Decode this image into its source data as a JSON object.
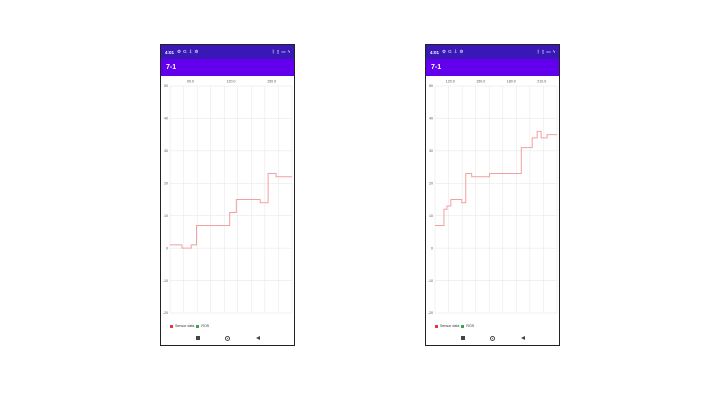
{
  "phones": [
    {
      "status": {
        "time": "4:01",
        "left_icons": [
          "settings-icon",
          "google-icon",
          "download-icon",
          "settings-icon"
        ],
        "right_icons": [
          "bluetooth-icon",
          "vibrate-icon",
          "battery-icon",
          "charging-icon"
        ]
      },
      "app_title": "7-1",
      "legend": [
        {
          "label": "Sensor data",
          "color": "#e53935"
        },
        {
          "label": "ROS",
          "color": "#43a047"
        }
      ],
      "chart_data": {
        "type": "line",
        "x_tick_labels": [
          "90.0",
          "120.0",
          "150.0"
        ],
        "y_ticks": [
          -20,
          -10,
          0,
          10,
          20,
          30,
          40,
          50
        ],
        "ylim": [
          -20,
          50
        ],
        "xlim": [
          80,
          172
        ],
        "grid": true,
        "line_color": "#f2a0a0",
        "series": [
          {
            "x": [
              80,
              89,
              89,
              96,
              96,
              100,
              100,
              104,
              104,
              125,
              125,
              130,
              130,
              148,
              148,
              154,
              154,
              160,
              160,
              168,
              168,
              172
            ],
            "y": [
              1,
              1,
              0,
              0,
              1,
              1,
              7,
              7,
              7,
              7,
              11,
              11,
              15,
              15,
              14,
              14,
              23,
              23,
              22,
              22,
              22,
              22
            ]
          }
        ]
      }
    },
    {
      "status": {
        "time": "4:01",
        "left_icons": [
          "settings-icon",
          "google-icon",
          "download-icon",
          "settings-icon"
        ],
        "right_icons": [
          "bluetooth-icon",
          "vibrate-icon",
          "battery-icon",
          "charging-icon"
        ]
      },
      "app_title": "7-1",
      "legend": [
        {
          "label": "Sensor data",
          "color": "#e53935"
        },
        {
          "label": "ROS",
          "color": "#43a047"
        }
      ],
      "chart_data": {
        "type": "line",
        "x_tick_labels": [
          "120.0",
          "150.0",
          "180.0",
          "210.0"
        ],
        "y_ticks": [
          -20,
          -10,
          0,
          10,
          20,
          30,
          40,
          50
        ],
        "ylim": [
          -20,
          50
        ],
        "xlim": [
          107,
          230
        ],
        "grid": true,
        "line_color": "#f2a0a0",
        "series": [
          {
            "x": [
              107,
              116,
              116,
              119,
              119,
              123,
              123,
              134,
              134,
              138,
              138,
              144,
              144,
              162,
              162,
              175,
              175,
              194,
              194,
              205,
              205,
              210,
              210,
              214,
              214,
              220,
              220,
              225,
              225,
              230
            ],
            "y": [
              7,
              7,
              12,
              12,
              13,
              13,
              15,
              15,
              14,
              14,
              23,
              23,
              22,
              22,
              23,
              23,
              23,
              23,
              31,
              31,
              34,
              34,
              36,
              36,
              34,
              34,
              35,
              35,
              35,
              35
            ]
          }
        ]
      }
    }
  ],
  "nav": {
    "recents": "recents-button",
    "home": "home-button",
    "back": "back-button"
  }
}
